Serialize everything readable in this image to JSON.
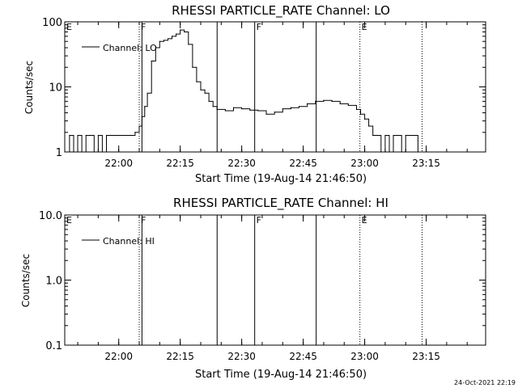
{
  "footer": {
    "timestamp": "24-Oct-2021 22:19"
  },
  "chart_data": [
    {
      "type": "line",
      "title": "RHESSI PARTICLE_RATE Channel: LO",
      "xlabel": "Start Time (19-Aug-14 21:46:50)",
      "ylabel": "Counts/sec",
      "yscale": "log",
      "ylim": [
        1,
        100
      ],
      "xlim": [
        "21:46:50",
        "23:29:30"
      ],
      "x_ticks": [
        "22:00",
        "22:15",
        "22:30",
        "22:45",
        "23:00",
        "23:15"
      ],
      "y_ticks": [
        "1",
        "10",
        "100"
      ],
      "grid": false,
      "legend": {
        "position": "top-left",
        "entries": [
          "Channel: LO"
        ]
      },
      "markers": [
        {
          "time": "22:05:00",
          "label": "F",
          "style": "dotted"
        },
        {
          "time": "22:05:40",
          "label": "",
          "style": "solid"
        },
        {
          "time": "22:24:00",
          "label": "",
          "style": "solid"
        },
        {
          "time": "22:33:10",
          "label": "F",
          "style": "solid"
        },
        {
          "time": "22:48:10",
          "label": "",
          "style": "solid"
        },
        {
          "time": "22:58:50",
          "label": "E",
          "style": "dotted"
        },
        {
          "time": "23:14:00",
          "label": "",
          "style": "dotted"
        },
        {
          "time": "21:46:50",
          "label": "E",
          "style": "none"
        }
      ],
      "series": [
        {
          "name": "Channel: LO",
          "x": [
            "21:47:00",
            "21:48:00",
            "21:49:00",
            "21:50:00",
            "21:51:00",
            "21:52:00",
            "21:53:00",
            "21:54:00",
            "21:55:00",
            "21:56:00",
            "21:57:00",
            "21:58:00",
            "21:59:00",
            "22:00:00",
            "22:01:00",
            "22:02:00",
            "22:03:00",
            "22:04:00",
            "22:05:00",
            "22:05:40",
            "22:06:20",
            "22:07:00",
            "22:08:00",
            "22:09:00",
            "22:10:00",
            "22:11:00",
            "22:12:00",
            "22:13:00",
            "22:14:00",
            "22:15:00",
            "22:16:00",
            "22:17:00",
            "22:18:00",
            "22:19:00",
            "22:20:00",
            "22:21:00",
            "22:22:00",
            "22:23:00",
            "22:24:00",
            "22:26:00",
            "22:28:00",
            "22:30:00",
            "22:32:00",
            "22:34:00",
            "22:36:00",
            "22:38:00",
            "22:40:00",
            "22:42:00",
            "22:44:00",
            "22:46:00",
            "22:48:00",
            "22:50:00",
            "22:52:00",
            "22:54:00",
            "22:56:00",
            "22:58:00",
            "22:59:00",
            "23:00:00",
            "23:01:00",
            "23:02:00",
            "23:03:00",
            "23:04:00",
            "23:05:00",
            "23:06:00",
            "23:07:00",
            "23:08:00",
            "23:09:00",
            "23:10:00",
            "23:11:00",
            "23:12:00",
            "23:13:00"
          ],
          "y": [
            1.0,
            1.8,
            1.0,
            1.8,
            1.0,
            1.8,
            1.8,
            1.0,
            1.8,
            1.0,
            1.8,
            1.8,
            1.8,
            1.8,
            1.8,
            1.8,
            1.8,
            2.0,
            2.5,
            3.5,
            5.0,
            8.0,
            25,
            40,
            50,
            52,
            55,
            60,
            65,
            75,
            70,
            45,
            20,
            12,
            9,
            8,
            6,
            5,
            4.5,
            4.3,
            4.8,
            4.6,
            4.4,
            4.3,
            3.8,
            4.1,
            4.6,
            4.8,
            5.0,
            5.5,
            6.0,
            6.2,
            6.0,
            5.5,
            5.2,
            4.5,
            3.8,
            3.2,
            2.5,
            1.8,
            1.8,
            1.0,
            1.8,
            1.0,
            1.8,
            1.8,
            1.0,
            1.8,
            1.8,
            1.8,
            1.0
          ]
        }
      ]
    },
    {
      "type": "line",
      "title": "RHESSI PARTICLE_RATE Channel: HI",
      "xlabel": "Start Time (19-Aug-14 21:46:50)",
      "ylabel": "Counts/sec",
      "yscale": "log",
      "ylim": [
        0.1,
        10
      ],
      "xlim": [
        "21:46:50",
        "23:29:30"
      ],
      "x_ticks": [
        "22:00",
        "22:15",
        "22:30",
        "22:45",
        "23:00",
        "23:15"
      ],
      "y_ticks": [
        "0.1",
        "1.0",
        "10.0"
      ],
      "grid": false,
      "legend": {
        "position": "top-left",
        "entries": [
          "Channel: HI"
        ]
      },
      "markers": [
        {
          "time": "22:05:00",
          "label": "F",
          "style": "dotted"
        },
        {
          "time": "22:05:40",
          "label": "",
          "style": "solid"
        },
        {
          "time": "22:24:00",
          "label": "",
          "style": "solid"
        },
        {
          "time": "22:33:10",
          "label": "F",
          "style": "solid"
        },
        {
          "time": "22:48:10",
          "label": "",
          "style": "solid"
        },
        {
          "time": "22:58:50",
          "label": "E",
          "style": "dotted"
        },
        {
          "time": "23:14:00",
          "label": "",
          "style": "dotted"
        },
        {
          "time": "21:46:50",
          "label": "E",
          "style": "none"
        }
      ],
      "series": [
        {
          "name": "Channel: HI",
          "x": [],
          "y": []
        }
      ]
    }
  ]
}
